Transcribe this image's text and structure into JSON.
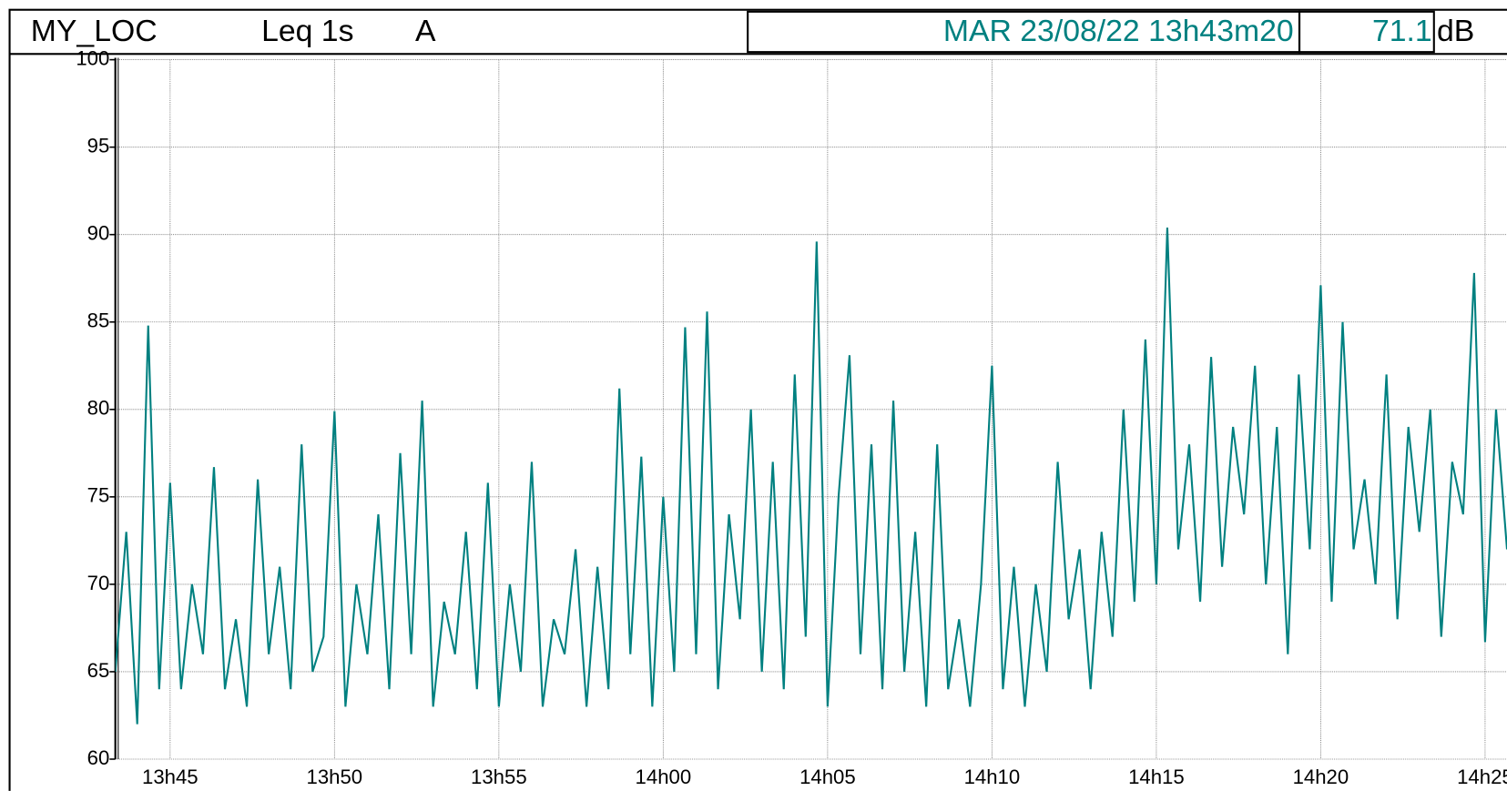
{
  "header": {
    "location": "MY_LOC",
    "measure": "Leq 1s",
    "weighting": "A",
    "datetime": "MAR 23/08/22 13h43m20",
    "cursor_value": "71.1",
    "unit": "dB"
  },
  "chart_data": {
    "type": "line",
    "x": [
      49400,
      49420,
      49440,
      49460,
      49480,
      49500,
      49520,
      49540,
      49560,
      49580,
      49600,
      49620,
      49640,
      49660,
      49680,
      49700,
      49720,
      49740,
      49760,
      49780,
      49800,
      49820,
      49840,
      49860,
      49880,
      49900,
      49920,
      49940,
      49960,
      49980,
      50000,
      50020,
      50040,
      50060,
      50080,
      50100,
      50120,
      50140,
      50160,
      50180,
      50200,
      50220,
      50240,
      50260,
      50280,
      50300,
      50320,
      50340,
      50360,
      50380,
      50400,
      50420,
      50440,
      50460,
      50480,
      50500,
      50520,
      50540,
      50560,
      50580,
      50600,
      50620,
      50640,
      50660,
      50680,
      50700,
      50720,
      50740,
      50760,
      50780,
      50800,
      50820,
      50840,
      50860,
      50880,
      50900,
      50920,
      50940,
      50960,
      50980,
      51000,
      51020,
      51040,
      51060,
      51080,
      51100,
      51120,
      51140,
      51160,
      51180,
      51200,
      51220,
      51240,
      51260,
      51280,
      51300,
      51320,
      51340,
      51360,
      51380,
      51400,
      51420,
      51440,
      51460,
      51480,
      51500,
      51520,
      51540,
      51560,
      51580,
      51600,
      51620,
      51640,
      51660,
      51680,
      51700,
      51720,
      51740,
      51760,
      51780,
      51800,
      51820,
      51840,
      51860,
      51880,
      51900,
      51920,
      51940
    ],
    "series": [
      {
        "color": "#008080",
        "values": [
          65,
          73,
          62,
          84.8,
          64,
          75.8,
          64,
          70,
          66,
          76.7,
          64,
          68,
          63,
          76,
          66,
          71,
          64,
          78,
          65,
          67,
          79.9,
          63,
          70,
          66,
          74,
          64,
          77.5,
          66,
          80.5,
          63,
          69,
          66,
          73,
          64,
          75.8,
          63,
          70,
          65,
          77,
          63,
          68,
          66,
          72,
          63,
          71,
          64,
          81.2,
          66,
          77.3,
          63,
          75,
          65,
          84.7,
          66,
          85.6,
          64,
          74,
          68,
          80,
          65,
          77,
          64,
          82,
          67,
          89.6,
          63,
          75,
          83.1,
          66,
          78,
          64,
          80.5,
          65,
          73,
          63,
          78,
          64,
          68,
          63,
          70,
          82.5,
          64,
          71,
          63,
          70,
          65,
          77,
          68,
          72,
          64,
          73,
          67,
          80,
          69,
          84,
          70,
          90.4,
          72,
          78,
          69,
          83,
          71,
          79,
          74,
          82.5,
          70,
          79,
          66,
          82,
          72,
          87.1,
          69,
          85,
          72,
          76,
          70,
          82,
          68,
          79,
          73,
          80,
          67,
          77,
          74,
          87.8,
          66.7,
          80,
          72
        ]
      }
    ],
    "xlim": [
      49400,
      51940
    ],
    "xticks": [
      {
        "value": 49500,
        "label": "13h45"
      },
      {
        "value": 49800,
        "label": "13h50"
      },
      {
        "value": 50100,
        "label": "13h55"
      },
      {
        "value": 50400,
        "label": "14h00"
      },
      {
        "value": 50700,
        "label": "14h05"
      },
      {
        "value": 51000,
        "label": "14h10"
      },
      {
        "value": 51300,
        "label": "14h15"
      },
      {
        "value": 51600,
        "label": "14h20"
      },
      {
        "value": 51900,
        "label": "14h25"
      }
    ],
    "ylim": [
      60,
      100
    ],
    "yticks": [
      60,
      65,
      70,
      75,
      80,
      85,
      90,
      95,
      100
    ],
    "grid": true
  }
}
